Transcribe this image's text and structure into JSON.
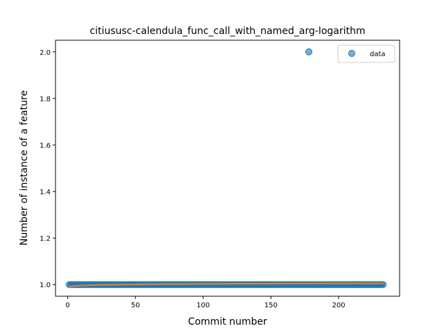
{
  "chart_data": {
    "type": "scatter",
    "title": "citiususc-calendula_func_call_with_named_arg-logarithm",
    "xlabel": "Commit number",
    "ylabel": "Number of instance of a feature",
    "xlim": [
      -9,
      245
    ],
    "ylim": [
      0.95,
      2.05
    ],
    "xticks": [
      0,
      50,
      100,
      150,
      200
    ],
    "yticks": [
      1.0,
      1.2,
      1.4,
      1.6,
      1.8,
      2.0
    ],
    "ytick_labels": [
      "1.0",
      "1.2",
      "1.4",
      "1.6",
      "1.8",
      "2.0"
    ],
    "legend": {
      "placement": "upper-right",
      "entries": [
        "data"
      ]
    },
    "series": [
      {
        "name": "data",
        "kind": "scatter",
        "color": "#1f77b4",
        "x_range": [
          1,
          233
        ],
        "y_value": 1.0,
        "outliers": [
          {
            "x": 178,
            "y": 2.0
          }
        ]
      },
      {
        "kind": "fit-line",
        "color": "#ff7f0e",
        "x": [
          1,
          3,
          5,
          10,
          20,
          40,
          70,
          100,
          150,
          200,
          233
        ],
        "y": [
          0.99,
          0.992,
          0.994,
          0.996,
          0.998,
          1.0,
          1.002,
          1.003,
          1.004,
          1.005,
          1.005
        ]
      }
    ]
  }
}
